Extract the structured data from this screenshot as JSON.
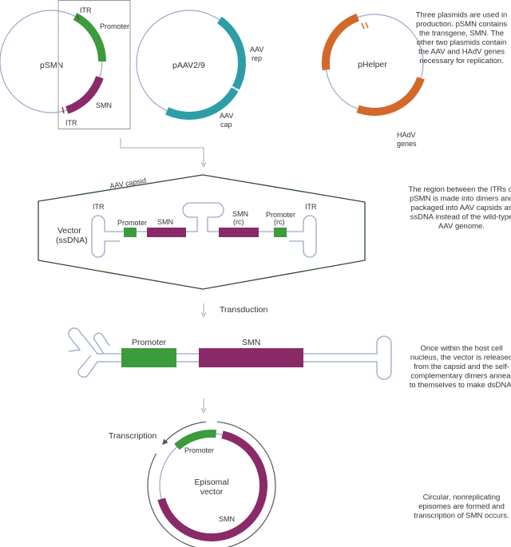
{
  "colors": {
    "backbone": "#9aa7cc",
    "promoter": "#3c9b3c",
    "smn": "#8a2a68",
    "aav": "#2e9ea6",
    "helper": "#d2692a",
    "capsid": "#2e4a2e",
    "arrow": "#aaaaaa"
  },
  "plasmids": {
    "psmn": {
      "name": "pSMN",
      "itr_top": "ITR",
      "itr_bottom": "ITR",
      "promoter": "Promoter",
      "smn": "SMN"
    },
    "paav": {
      "name": "pAAV2/9",
      "rep": [
        "AAV",
        "rep"
      ],
      "cap": [
        "AAV",
        "cap"
      ]
    },
    "phelper": {
      "name": "pHelper",
      "hadv": [
        "HAdV",
        "genes"
      ]
    }
  },
  "capsid": {
    "label": "AAV capsid",
    "vector": [
      "Vector",
      "(ssDNA)"
    ],
    "itr_left": "ITR",
    "itr_right": "ITR",
    "promoter": "Promoter",
    "smn": "SMN",
    "smn_rc": [
      "SMN",
      "(rc)"
    ],
    "promoter_rc": [
      "Promoter",
      "(rc)"
    ]
  },
  "transduction": {
    "label": "Transduction",
    "promoter": "Promoter",
    "smn": "SMN"
  },
  "episome": {
    "transcription": "Transcription",
    "promoter": "Promoter",
    "center": [
      "Episomal",
      "vector"
    ],
    "smn": "SMN"
  },
  "notes": [
    [
      "Three plasmids are used in",
      "production. pSMN contains",
      "the transgene, SMN. The",
      "other two plasmids contain",
      "the AAV and HAdV genes",
      "necessary for replication."
    ],
    [
      "The region between the ITRs of",
      "pSMN is made into dimers and",
      "packaged into AAV capsids as",
      "ssDNA instead of the wild-type",
      "AAV genome."
    ],
    [
      "Once within the host cell",
      "nucleus, the vector is released",
      "from the capsid and the self-",
      "complementary dimers anneal",
      "to themselves to make dsDNA."
    ],
    [
      "Circular, nonreplicating",
      "episomes are formed and",
      "transcription of SMN occurs."
    ]
  ]
}
